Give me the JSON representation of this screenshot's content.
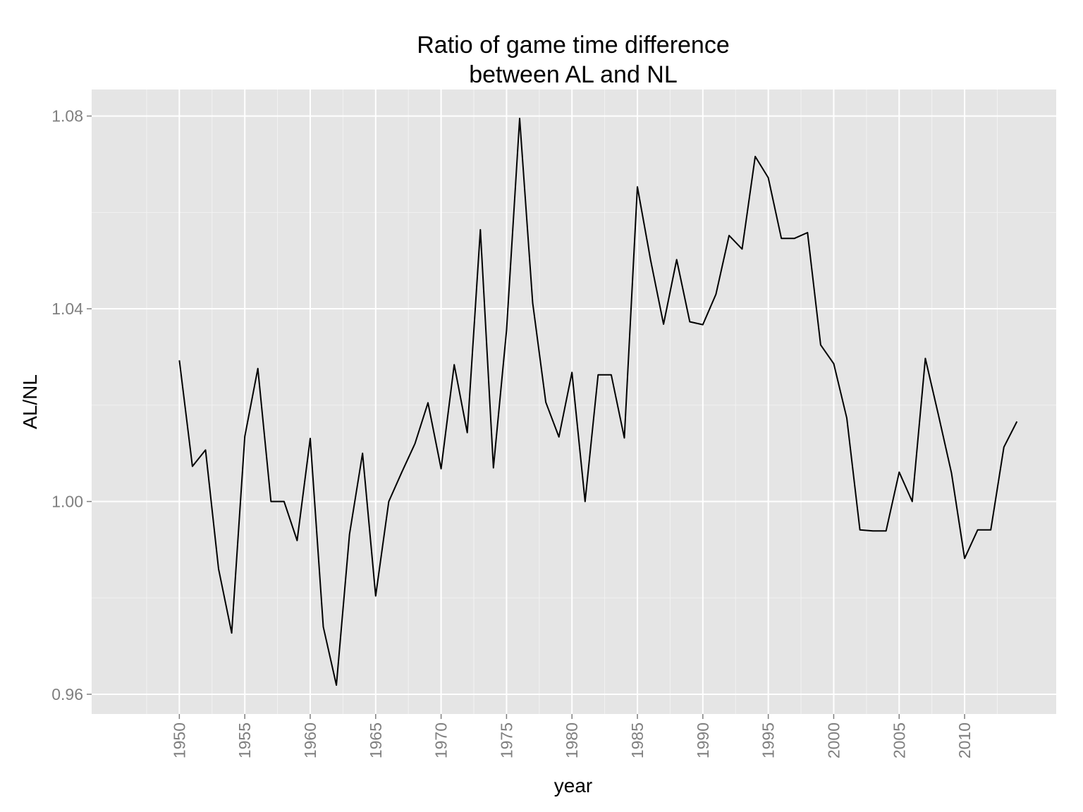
{
  "chart_data": {
    "type": "line",
    "title": [
      "Ratio of game time difference",
      "between AL and NL"
    ],
    "xlabel": "year",
    "ylabel": "AL/NL",
    "xlim": [
      1943.3,
      2017
    ],
    "ylim": [
      0.9559,
      1.0855
    ],
    "x_ticks": [
      1950,
      1955,
      1960,
      1965,
      1970,
      1975,
      1980,
      1985,
      1990,
      1995,
      2000,
      2005,
      2010
    ],
    "x_tick_labels": [
      "1950",
      "1955",
      "1960",
      "1965",
      "1970",
      "1975",
      "1980",
      "1985",
      "1990",
      "1995",
      "2000",
      "2005",
      "2010"
    ],
    "y_ticks": [
      0.96,
      1.0,
      1.04,
      1.08
    ],
    "y_tick_labels": [
      "0.96",
      "1.00",
      "1.04",
      "1.08"
    ],
    "grid": true,
    "colors": {
      "panel": "#e5e5e5",
      "grid_major": "#ffffff",
      "grid_minor": "#f2f2f2",
      "line": "#000000"
    },
    "series": [
      {
        "x": [
          1950,
          1951,
          1952,
          1953,
          1954,
          1955,
          1956,
          1957,
          1958,
          1959,
          1960,
          1961,
          1962,
          1963,
          1964,
          1965,
          1966,
          1967,
          1968,
          1969,
          1970,
          1971,
          1972,
          1973,
          1974,
          1975,
          1976,
          1977,
          1978,
          1979,
          1980,
          1981,
          1982,
          1983,
          1984,
          1985,
          1986,
          1987,
          1988,
          1989,
          1990,
          1991,
          1992,
          1993,
          1994,
          1995,
          1996,
          1997,
          1998,
          1999,
          2000,
          2001,
          2002,
          2003,
          2004,
          2005,
          2006,
          2007,
          2008,
          2009,
          2010,
          2011,
          2012,
          2013,
          2014
        ],
        "y": [
          1.0293,
          1.0073,
          1.0107,
          0.986,
          0.9727,
          1.0135,
          1.0276,
          1.0,
          1.0,
          0.9919,
          1.0131,
          0.974,
          0.9619,
          0.9932,
          1.01,
          0.9804,
          1.0,
          1.0061,
          1.012,
          1.0205,
          1.0068,
          1.0284,
          1.0143,
          1.0564,
          1.007,
          1.0355,
          1.0795,
          1.0412,
          1.0206,
          1.0134,
          1.0268,
          1.0,
          1.0263,
          1.0263,
          1.0132,
          1.0653,
          1.0502,
          1.0368,
          1.0502,
          1.0373,
          1.0367,
          1.043,
          1.0552,
          1.0524,
          1.0716,
          1.0672,
          1.0546,
          1.0546,
          1.0558,
          1.0325,
          1.0286,
          1.0173,
          0.9941,
          0.9939,
          0.9939,
          1.0061,
          1.0,
          1.0297,
          1.018,
          1.0059,
          0.9882,
          0.9941,
          0.9941,
          1.0113,
          1.0166
        ]
      }
    ]
  }
}
